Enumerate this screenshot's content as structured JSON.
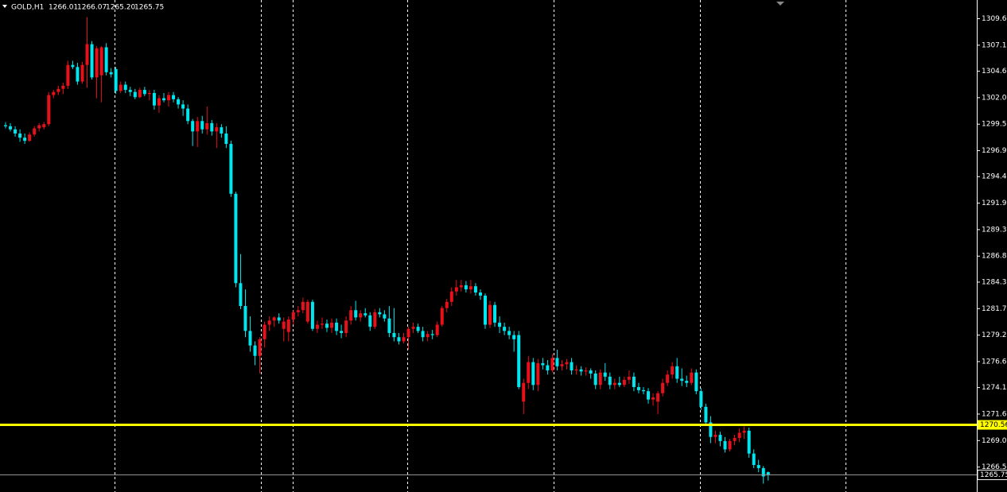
{
  "chart_data": {
    "type": "candlestick",
    "title": "GOLD,H1",
    "header_values": [
      "1266.01",
      "1266.07",
      "1265.20",
      "1265.75"
    ],
    "bull_color": "#e8101a",
    "bear_color": "#00e5ee",
    "ylim": [
      1264.1,
      1311.45
    ],
    "yticks": [
      1309.65,
      {
        "value": 1307.1,
        "label": "1307.10"
      },
      {
        "value": 1304.6,
        "label": "1304.60"
      },
      1302.05,
      {
        "value": 1299.5,
        "label": "1299.50"
      },
      1296.95,
      1294.45,
      {
        "value": 1291.9,
        "label": "1291.90"
      },
      1289.35,
      {
        "value": 1286.8,
        "label": "1286.80"
      },
      {
        "value": 1284.3,
        "label": "1284.30"
      },
      1281.75,
      {
        "value": 1279.2,
        "label": "1279.20"
      },
      1276.65,
      1274.15,
      {
        "value": 1271.6,
        "label": "1271.60"
      },
      1269.05,
      {
        "value": 1266.5,
        "label": "1266.50"
      }
    ],
    "level_line": {
      "value": 1270.56,
      "color": "#ffff00"
    },
    "price_line": {
      "value": 1265.75,
      "color": "#9a9a9a"
    },
    "candles": [
      [
        1299.4,
        1299.7,
        1299.1,
        1299.3
      ],
      [
        1299.3,
        1299.6,
        1298.8,
        1299.0
      ],
      [
        1299.0,
        1299.3,
        1298.3,
        1298.6
      ],
      [
        1298.6,
        1299.0,
        1297.8,
        1298.2
      ],
      [
        1298.2,
        1298.6,
        1297.6,
        1297.9
      ],
      [
        1297.9,
        1298.7,
        1297.8,
        1298.5
      ],
      [
        1298.5,
        1299.3,
        1298.3,
        1299.1
      ],
      [
        1299.1,
        1299.6,
        1298.8,
        1299.4
      ],
      [
        1299.2,
        1299.7,
        1299.0,
        1299.5
      ],
      [
        1299.5,
        1302.6,
        1299.3,
        1302.3
      ],
      [
        1302.3,
        1302.8,
        1302.0,
        1302.6
      ],
      [
        1302.6,
        1303.2,
        1302.3,
        1302.9
      ],
      [
        1302.9,
        1303.5,
        1302.4,
        1303.2
      ],
      [
        1303.2,
        1305.6,
        1302.9,
        1305.2
      ],
      [
        1305.2,
        1305.6,
        1304.8,
        1305.0
      ],
      [
        1305.0,
        1305.4,
        1303.3,
        1303.6
      ],
      [
        1303.6,
        1305.5,
        1303.4,
        1305.2
      ],
      [
        1305.2,
        1309.8,
        1303.0,
        1307.2
      ],
      [
        1307.2,
        1307.5,
        1303.8,
        1304.0
      ],
      [
        1304.0,
        1307.0,
        1302.0,
        1306.8
      ],
      [
        1304.2,
        1307.0,
        1301.6,
        1306.9
      ],
      [
        1306.9,
        1307.3,
        1304.2,
        1304.5
      ],
      [
        1304.5,
        1304.9,
        1304.0,
        1304.3
      ],
      [
        1304.8,
        1305.0,
        1302.4,
        1302.7
      ],
      [
        1302.7,
        1303.6,
        1302.5,
        1303.3
      ],
      [
        1303.3,
        1303.6,
        1302.5,
        1302.8
      ],
      [
        1302.8,
        1303.1,
        1302.2,
        1302.6
      ],
      [
        1302.6,
        1302.9,
        1301.9,
        1302.1
      ],
      [
        1302.1,
        1303.0,
        1302.0,
        1302.8
      ],
      [
        1302.8,
        1303.1,
        1302.2,
        1302.4
      ],
      [
        1302.4,
        1302.8,
        1301.8,
        1302.5
      ],
      [
        1302.5,
        1302.8,
        1300.9,
        1301.3
      ],
      [
        1301.3,
        1302.3,
        1300.6,
        1302.0
      ],
      [
        1302.0,
        1302.5,
        1301.6,
        1301.8
      ],
      [
        1301.8,
        1302.6,
        1301.2,
        1302.3
      ],
      [
        1302.3,
        1302.6,
        1301.6,
        1301.9
      ],
      [
        1301.9,
        1302.1,
        1301.0,
        1301.4
      ],
      [
        1301.4,
        1301.8,
        1300.3,
        1301.0
      ],
      [
        1301.0,
        1301.4,
        1299.5,
        1299.8
      ],
      [
        1299.8,
        1300.0,
        1297.4,
        1298.8
      ],
      [
        1298.8,
        1300.2,
        1297.3,
        1299.8
      ],
      [
        1299.8,
        1300.3,
        1298.6,
        1299.0
      ],
      [
        1299.0,
        1301.2,
        1298.5,
        1299.6
      ],
      [
        1299.6,
        1299.9,
        1298.4,
        1298.8
      ],
      [
        1298.8,
        1299.6,
        1297.2,
        1299.2
      ],
      [
        1299.2,
        1299.5,
        1298.2,
        1298.6
      ],
      [
        1298.6,
        1299.3,
        1297.2,
        1297.6
      ],
      [
        1297.6,
        1297.9,
        1292.5,
        1292.8
      ],
      [
        1292.8,
        1293.0,
        1283.8,
        1284.2
      ],
      [
        1284.2,
        1287.0,
        1281.7,
        1282.0
      ],
      [
        1282.0,
        1283.6,
        1279.0,
        1279.6
      ],
      [
        1279.6,
        1281.0,
        1277.6,
        1278.2
      ],
      [
        1278.2,
        1278.6,
        1276.3,
        1277.2
      ],
      [
        1277.2,
        1279.0,
        1275.5,
        1278.8
      ],
      [
        1278.8,
        1280.5,
        1278.0,
        1280.2
      ],
      [
        1280.2,
        1281.0,
        1279.6,
        1280.6
      ],
      [
        1280.6,
        1281.0,
        1280.0,
        1280.9
      ],
      [
        1280.9,
        1281.3,
        1280.3,
        1280.6
      ],
      [
        1279.8,
        1280.9,
        1278.6,
        1280.5
      ],
      [
        1279.5,
        1281.0,
        1278.6,
        1280.7
      ],
      [
        1280.7,
        1281.6,
        1280.2,
        1281.4
      ],
      [
        1281.4,
        1282.0,
        1281.0,
        1281.6
      ],
      [
        1281.6,
        1282.8,
        1281.3,
        1282.4
      ],
      [
        1280.5,
        1282.6,
        1280.3,
        1282.4
      ],
      [
        1282.4,
        1282.6,
        1279.6,
        1279.8
      ],
      [
        1279.8,
        1280.6,
        1279.4,
        1280.2
      ],
      [
        1280.2,
        1280.9,
        1279.8,
        1280.3
      ],
      [
        1280.3,
        1280.7,
        1279.5,
        1279.9
      ],
      [
        1279.9,
        1280.8,
        1279.4,
        1280.4
      ],
      [
        1280.4,
        1280.8,
        1279.2,
        1279.6
      ],
      [
        1279.6,
        1280.2,
        1278.9,
        1279.4
      ],
      [
        1279.4,
        1281.0,
        1279.0,
        1280.6
      ],
      [
        1280.6,
        1282.0,
        1280.2,
        1281.6
      ],
      [
        1281.6,
        1282.5,
        1280.6,
        1280.9
      ],
      [
        1280.9,
        1281.6,
        1280.5,
        1281.3
      ],
      [
        1281.3,
        1281.8,
        1280.9,
        1281.1
      ],
      [
        1281.1,
        1281.4,
        1279.6,
        1280.0
      ],
      [
        1280.0,
        1281.7,
        1279.8,
        1281.4
      ],
      [
        1281.4,
        1281.8,
        1280.9,
        1281.2
      ],
      [
        1281.2,
        1281.6,
        1280.5,
        1280.8
      ],
      [
        1280.8,
        1282.0,
        1279.0,
        1279.4
      ],
      [
        1279.4,
        1281.8,
        1278.6,
        1279.0
      ],
      [
        1279.0,
        1279.4,
        1278.3,
        1278.6
      ],
      [
        1278.6,
        1279.4,
        1278.4,
        1279.0
      ],
      [
        1279.0,
        1280.0,
        1277.8,
        1279.8
      ],
      [
        1279.8,
        1280.4,
        1279.4,
        1280.0
      ],
      [
        1280.0,
        1280.3,
        1279.4,
        1279.6
      ],
      [
        1279.6,
        1280.0,
        1278.6,
        1279.0
      ],
      [
        1279.0,
        1279.6,
        1278.6,
        1279.3
      ],
      [
        1279.3,
        1279.7,
        1278.8,
        1279.2
      ],
      [
        1279.2,
        1280.5,
        1279.0,
        1280.2
      ],
      [
        1280.2,
        1282.0,
        1280.0,
        1281.8
      ],
      [
        1281.8,
        1282.7,
        1281.4,
        1282.4
      ],
      [
        1282.4,
        1283.8,
        1282.0,
        1283.4
      ],
      [
        1283.4,
        1284.5,
        1283.0,
        1283.8
      ],
      [
        1283.8,
        1284.5,
        1283.4,
        1284.0
      ],
      [
        1284.0,
        1284.4,
        1283.3,
        1283.6
      ],
      [
        1283.6,
        1284.5,
        1283.2,
        1283.9
      ],
      [
        1283.9,
        1284.2,
        1283.0,
        1283.3
      ],
      [
        1283.3,
        1283.6,
        1282.6,
        1283.0
      ],
      [
        1283.0,
        1283.2,
        1279.8,
        1280.2
      ],
      [
        1280.2,
        1282.5,
        1279.9,
        1282.1
      ],
      [
        1282.1,
        1282.4,
        1280.0,
        1280.4
      ],
      [
        1280.4,
        1281.0,
        1279.4,
        1280.0
      ],
      [
        1280.0,
        1280.4,
        1279.2,
        1279.6
      ],
      [
        1279.6,
        1280.0,
        1278.8,
        1279.2
      ],
      [
        1279.2,
        1279.6,
        1277.6,
        1278.8
      ],
      [
        1279.2,
        1279.6,
        1274.0,
        1274.2
      ],
      [
        1272.8,
        1275.0,
        1271.6,
        1274.6
      ],
      [
        1274.6,
        1277.2,
        1274.0,
        1276.6
      ],
      [
        1276.6,
        1277.0,
        1273.9,
        1274.4
      ],
      [
        1274.4,
        1276.9,
        1273.8,
        1276.5
      ],
      [
        1276.5,
        1277.0,
        1275.9,
        1276.3
      ],
      [
        1276.3,
        1276.8,
        1275.4,
        1275.8
      ],
      [
        1275.8,
        1277.4,
        1275.6,
        1277.0
      ],
      [
        1277.0,
        1277.8,
        1275.8,
        1276.2
      ],
      [
        1276.2,
        1276.8,
        1275.8,
        1276.4
      ],
      [
        1276.4,
        1276.9,
        1275.9,
        1276.6
      ],
      [
        1276.6,
        1277.0,
        1275.4,
        1275.8
      ],
      [
        1275.8,
        1276.3,
        1275.4,
        1275.9
      ],
      [
        1275.9,
        1276.2,
        1275.3,
        1275.7
      ],
      [
        1275.7,
        1276.1,
        1275.3,
        1275.8
      ],
      [
        1275.8,
        1276.0,
        1275.0,
        1275.5
      ],
      [
        1275.5,
        1275.8,
        1274.0,
        1274.4
      ],
      [
        1274.4,
        1275.9,
        1274.0,
        1275.6
      ],
      [
        1275.6,
        1276.5,
        1274.8,
        1275.2
      ],
      [
        1275.2,
        1275.6,
        1274.0,
        1274.4
      ],
      [
        1274.4,
        1275.0,
        1274.0,
        1274.6
      ],
      [
        1274.6,
        1275.2,
        1274.2,
        1274.4
      ],
      [
        1274.4,
        1275.2,
        1274.2,
        1274.9
      ],
      [
        1274.9,
        1275.8,
        1274.5,
        1275.2
      ],
      [
        1275.2,
        1275.6,
        1273.8,
        1274.2
      ],
      [
        1274.2,
        1274.6,
        1273.6,
        1273.9
      ],
      [
        1273.9,
        1274.2,
        1273.5,
        1273.8
      ],
      [
        1273.8,
        1274.1,
        1272.6,
        1273.0
      ],
      [
        1273.0,
        1273.6,
        1272.4,
        1273.2
      ],
      [
        1272.8,
        1273.8,
        1271.6,
        1273.6
      ],
      [
        1273.6,
        1275.0,
        1273.3,
        1274.6
      ],
      [
        1274.6,
        1275.8,
        1274.3,
        1275.4
      ],
      [
        1275.4,
        1276.6,
        1275.0,
        1276.2
      ],
      [
        1276.2,
        1277.0,
        1274.6,
        1275.0
      ],
      [
        1275.0,
        1276.0,
        1274.3,
        1274.8
      ],
      [
        1274.8,
        1275.3,
        1274.2,
        1274.6
      ],
      [
        1274.6,
        1276.0,
        1274.4,
        1275.6
      ],
      [
        1275.6,
        1275.9,
        1273.5,
        1273.8
      ],
      [
        1273.8,
        1274.1,
        1272.0,
        1272.3
      ],
      [
        1272.3,
        1272.6,
        1270.5,
        1270.8
      ],
      [
        1270.8,
        1271.4,
        1268.8,
        1269.4
      ],
      [
        1269.4,
        1270.0,
        1268.8,
        1269.6
      ],
      [
        1269.6,
        1269.9,
        1268.5,
        1269.0
      ],
      [
        1269.0,
        1269.4,
        1267.9,
        1268.2
      ],
      [
        1268.2,
        1269.2,
        1268.0,
        1269.0
      ],
      [
        1269.0,
        1269.6,
        1268.6,
        1269.3
      ],
      [
        1269.3,
        1270.2,
        1268.9,
        1269.8
      ],
      [
        1269.8,
        1270.4,
        1269.2,
        1270.0
      ],
      [
        1270.0,
        1270.3,
        1267.4,
        1267.8
      ],
      [
        1267.8,
        1268.2,
        1266.4,
        1266.7
      ],
      [
        1266.7,
        1267.2,
        1266.0,
        1266.4
      ],
      [
        1266.4,
        1266.6,
        1264.9,
        1265.6
      ],
      [
        1266.01,
        1266.07,
        1265.2,
        1265.75
      ]
    ]
  }
}
